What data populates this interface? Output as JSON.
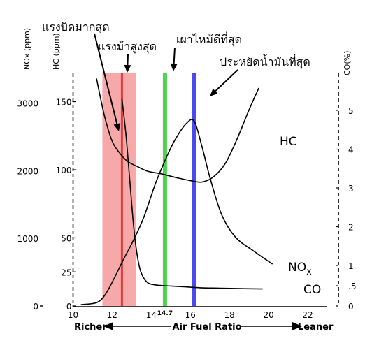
{
  "chart_data": {
    "type": "line",
    "xlabel": "Air Fuel Ratio",
    "x_direction_labels": {
      "left": "Richer",
      "right": "Leaner"
    },
    "xlim": [
      10,
      23
    ],
    "x_ticks": [
      "10",
      "12",
      "14",
      "14.7",
      "16",
      "18",
      "20",
      "22"
    ],
    "axes": {
      "nox": {
        "label": "NOx (ppm)",
        "range": [
          0,
          3500
        ],
        "ticks": [
          "0",
          "1000",
          "2000",
          "3000"
        ]
      },
      "hc": {
        "label": "HC (ppm)",
        "range": [
          0,
          175
        ],
        "ticks": [
          "0",
          "25",
          "50",
          "100",
          "150"
        ]
      },
      "co": {
        "label": "CO(%)",
        "range": [
          0,
          6
        ],
        "ticks": [
          "0",
          ".5",
          "1",
          "2",
          "3",
          "4",
          "5"
        ]
      }
    },
    "series": [
      {
        "name": "HC",
        "axis": "hc",
        "x": [
          11.2,
          11.6,
          12.0,
          12.4,
          12.8,
          13.2,
          13.8,
          14.5,
          15.2,
          16.0,
          16.6,
          17.2,
          17.8,
          18.4,
          19.0,
          19.5
        ],
        "y": [
          167,
          140,
          121,
          112,
          106,
          103,
          99,
          97,
          94.5,
          92,
          91,
          95,
          105,
          123,
          144,
          160
        ]
      },
      {
        "name": "NOx",
        "axis": "nox",
        "x": [
          10.4,
          11.2,
          11.6,
          12.0,
          12.6,
          13.0,
          13.6,
          14.2,
          14.7,
          15.2,
          15.8,
          16.2,
          16.6,
          17.0,
          17.6,
          18.3,
          19.2,
          20.2
        ],
        "y": [
          20,
          50,
          150,
          350,
          700,
          920,
          1300,
          1800,
          2150,
          2450,
          2700,
          2730,
          2350,
          1900,
          1350,
          1020,
          820,
          620
        ]
      },
      {
        "name": "CO",
        "axis": "co",
        "x": [
          12.5,
          12.7,
          12.9,
          13.1,
          13.3,
          13.5,
          13.8,
          14.2,
          14.7,
          15.5,
          16.5,
          17.5,
          18.5,
          19.7
        ],
        "y": [
          5.3,
          4.4,
          3.2,
          2.0,
          1.2,
          0.8,
          0.58,
          0.52,
          0.5,
          0.48,
          0.45,
          0.44,
          0.43,
          0.42
        ]
      }
    ],
    "bands": [
      {
        "name": "แรงบิดมากสุด",
        "x_range": [
          11.5,
          13.2
        ],
        "color": "#f7a8a8"
      }
    ],
    "markers": [
      {
        "name": "แรงม้าสูงสุด",
        "x": 12.5,
        "color": "#e23a3a"
      },
      {
        "name": "เผาไหม้ดีที่สุด",
        "x": 14.7,
        "color": "#4cd44c"
      },
      {
        "name": "ประหยัดน้ำมันที่สุด",
        "x": 16.2,
        "color": "#4a4af0"
      }
    ]
  }
}
